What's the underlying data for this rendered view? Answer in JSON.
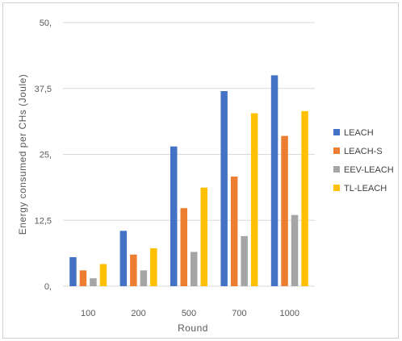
{
  "chart_data": {
    "type": "bar",
    "title": "",
    "xlabel": "Round",
    "ylabel": "Energy consumed per CHs (Joule)",
    "categories": [
      "100",
      "200",
      "500",
      "700",
      "1000"
    ],
    "ylim": [
      0,
      50
    ],
    "yticks": [
      "0,",
      "12,5",
      "25,",
      "37,5",
      "50,"
    ],
    "ytick_values": [
      0,
      12.5,
      25,
      37.5,
      50
    ],
    "grid": true,
    "legend_position": "right",
    "series": [
      {
        "name": "LEACH",
        "color": "#4472C4",
        "values": [
          5.5,
          10.5,
          26.5,
          37,
          40
        ]
      },
      {
        "name": "LEACH-S",
        "color": "#ED7D31",
        "values": [
          3,
          6,
          14.8,
          20.8,
          28.5
        ]
      },
      {
        "name": "EEV-LEACH",
        "color": "#A5A5A5",
        "values": [
          1.5,
          3,
          6.5,
          9.5,
          13.5
        ]
      },
      {
        "name": "TL-LEACH",
        "color": "#FFC000",
        "values": [
          4.2,
          7.2,
          18.7,
          32.8,
          33.2
        ]
      }
    ]
  }
}
